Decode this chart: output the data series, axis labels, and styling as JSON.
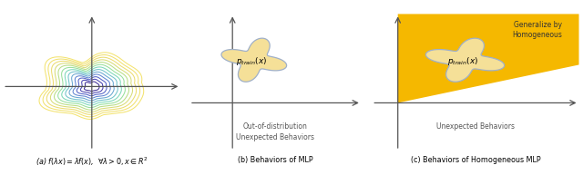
{
  "fig_width": 6.4,
  "fig_height": 1.93,
  "dpi": 100,
  "panel_a": {
    "caption": "(a) $f(\\lambda x) = \\lambda f(x)$,  $\\forall\\lambda > 0, x \\in R^2$",
    "n_contours": 13,
    "colors": [
      "#2d1b8c",
      "#3730a8",
      "#4050c0",
      "#5078cc",
      "#5a9ecc",
      "#62bcc4",
      "#6ed4b0",
      "#8cdc90",
      "#b0da78",
      "#d4d868",
      "#ead860",
      "#f0de60",
      "#f2e060"
    ]
  },
  "panel_b": {
    "caption": "(b) Behaviors of MLP",
    "bg_color": "#e8e6e0",
    "star_fill": "#f5e098",
    "star_edge": "#a0b0c8",
    "label_main": "$p$",
    "label_sub": "$_{train}$",
    "label_arg": "$(x)$",
    "bottom_text_line1": "Out-of-distribution",
    "bottom_text_line2": "Unexpected Behaviors"
  },
  "panel_c": {
    "caption": "(c) Behaviors of Homogeneous MLP",
    "bg_color": "#e8e6e0",
    "wedge_color": "#f5b800",
    "star_fill": "#f5e098",
    "star_edge": "#a0b0c8",
    "top_text_line1": "Generalize by",
    "top_text_line2": "Homogeneous",
    "bottom_text": "Unexpected Behaviors"
  }
}
